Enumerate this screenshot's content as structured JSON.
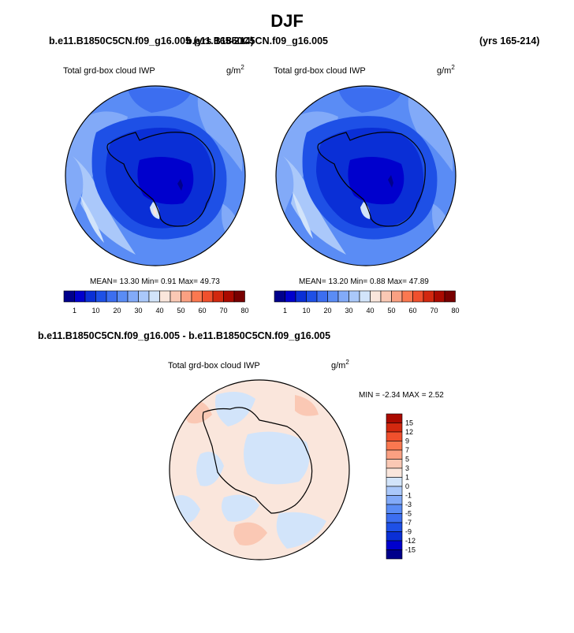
{
  "page": {
    "title": "DJF",
    "case_top_left": "b.e11.B1850C5CN.f09_g16.005 (yrs 165-214)",
    "case_top_right": "b.e11.B1850C5CN.f09_g16.005",
    "years_right": "(yrs 165-214)",
    "diff_header": "b.e11.B1850C5CN.f09_g16.005 - b.e11.B1850C5CN.f09_g16.005"
  },
  "panels": [
    {
      "variable": "Total grd-box cloud IWP",
      "units_base": "g/m",
      "units_exp": "2",
      "stats": "MEAN=  13.30  Min=   0.91  Max=  49.73"
    },
    {
      "variable": "Total grd-box cloud IWP",
      "units_base": "g/m",
      "units_exp": "2",
      "stats": "MEAN=  13.20  Min=   0.88  Max=  47.89"
    }
  ],
  "diff_panel": {
    "variable": "Total grd-box cloud IWP",
    "units_base": "g/m",
    "units_exp": "2",
    "stats": "MIN =  -2.34  MAX =   2.52"
  },
  "colorbar_main": {
    "colors": [
      "#00008b",
      "#0000cd",
      "#0a2fd6",
      "#1e50e6",
      "#3c6ef0",
      "#5a8cf5",
      "#82aaf8",
      "#aac8fa",
      "#d2e4fa",
      "#fae6dc",
      "#fac8b4",
      "#faa082",
      "#fa7850",
      "#f0502d",
      "#d2280f",
      "#aa0a00",
      "#780000"
    ],
    "tick_labels": [
      "1",
      "10",
      "20",
      "30",
      "40",
      "50",
      "60",
      "70",
      "80"
    ]
  },
  "colorbar_diff": {
    "colors": [
      "#00008b",
      "#0000cd",
      "#0a2fd6",
      "#1e50e6",
      "#3c6ef0",
      "#5a8cf5",
      "#82aaf8",
      "#aac8fa",
      "#d2e4fa",
      "#fae6dc",
      "#fac8b4",
      "#faa082",
      "#fa7850",
      "#f0502d",
      "#d2280f",
      "#aa0a00"
    ],
    "tick_labels": [
      "15",
      "12",
      "9",
      "7",
      "5",
      "3",
      "1",
      "0",
      "-1",
      "-3",
      "-5",
      "-7",
      "-9",
      "-12",
      "-15"
    ]
  }
}
